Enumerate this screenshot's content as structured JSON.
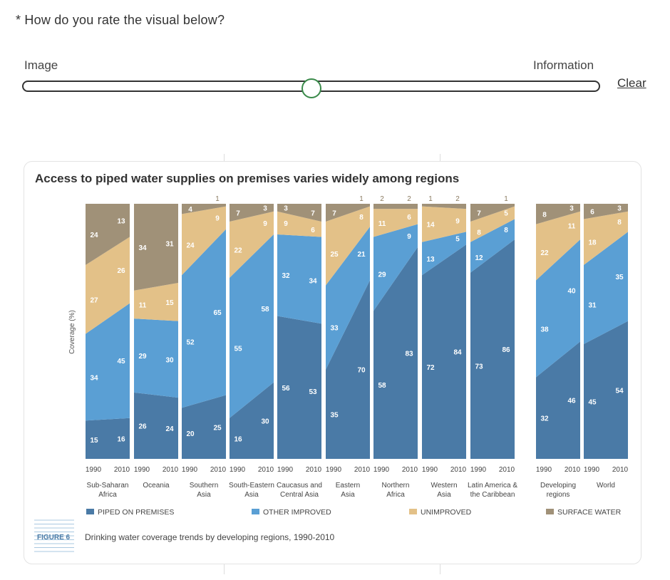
{
  "question": {
    "text": "* How do you rate the visual below?"
  },
  "slider": {
    "left_label": "Image",
    "right_label": "Information",
    "clear_label": "Clear",
    "value_fraction": 0.5
  },
  "chart_data": {
    "type": "area",
    "title": "Access to piped water supplies on premises varies widely among regions",
    "ylabel": "Coverage (%)",
    "ylim": [
      0,
      100
    ],
    "years": [
      "1990",
      "2010"
    ],
    "regions": [
      {
        "name": "Sub-Saharan Africa",
        "label_lines": [
          "Sub-Saharan",
          "Africa"
        ],
        "v1990": [
          15,
          34,
          27,
          24
        ],
        "v2010": [
          16,
          45,
          26,
          13
        ]
      },
      {
        "name": "Oceania",
        "label_lines": [
          "Oceania"
        ],
        "v1990": [
          26,
          29,
          11,
          34
        ],
        "v2010": [
          24,
          30,
          15,
          31
        ]
      },
      {
        "name": "Southern Asia",
        "label_lines": [
          "Southern",
          "Asia"
        ],
        "v1990": [
          20,
          52,
          24,
          4
        ],
        "v2010": [
          25,
          65,
          9,
          1
        ]
      },
      {
        "name": "South-Eastern Asia",
        "label_lines": [
          "South-Eastern",
          "Asia"
        ],
        "v1990": [
          16,
          55,
          22,
          7
        ],
        "v2010": [
          30,
          58,
          9,
          3
        ]
      },
      {
        "name": "Caucasus and Central Asia",
        "label_lines": [
          "Caucasus and",
          "Central Asia"
        ],
        "v1990": [
          56,
          32,
          9,
          3
        ],
        "v2010": [
          53,
          34,
          6,
          7
        ]
      },
      {
        "name": "Eastern Asia",
        "label_lines": [
          "Eastern",
          "Asia"
        ],
        "v1990": [
          35,
          33,
          25,
          7
        ],
        "v2010": [
          70,
          21,
          8,
          1
        ]
      },
      {
        "name": "Northern Africa",
        "label_lines": [
          "Northern",
          "Africa"
        ],
        "v1990": [
          58,
          29,
          11,
          2
        ],
        "v2010": [
          83,
          9,
          6,
          2
        ]
      },
      {
        "name": "Western Asia",
        "label_lines": [
          "Western",
          "Asia"
        ],
        "v1990": [
          72,
          13,
          14,
          1
        ],
        "v2010": [
          84,
          5,
          9,
          2
        ]
      },
      {
        "name": "Latin America & the Caribbean",
        "label_lines": [
          "Latin America &",
          "the Caribbean"
        ],
        "v1990": [
          73,
          12,
          8,
          7
        ],
        "v2010": [
          86,
          8,
          5,
          1
        ]
      },
      {
        "name": "Developing regions",
        "label_lines": [
          "Developing",
          "regions"
        ],
        "v1990": [
          32,
          38,
          22,
          8
        ],
        "v2010": [
          46,
          40,
          11,
          3
        ]
      },
      {
        "name": "World",
        "label_lines": [
          "World"
        ],
        "v1990": [
          45,
          31,
          18,
          6
        ],
        "v2010": [
          54,
          35,
          8,
          3
        ]
      }
    ],
    "series": [
      {
        "name": "PIPED ON PREMISES",
        "color": "#4a7aa6",
        "label_color": "#ffffff"
      },
      {
        "name": "OTHER IMPROVED",
        "color": "#5a9fd4",
        "label_color": "#ffffff"
      },
      {
        "name": "UNIMPROVED",
        "color": "#e3c188",
        "label_color": "#ffffff"
      },
      {
        "name": "SURFACE WATER",
        "color": "#a09178",
        "label_color": "#ffffff"
      }
    ],
    "figure_tag": "FIGURE 6",
    "caption": "Drinking water coverage trends by developing regions, 1990-2010"
  }
}
